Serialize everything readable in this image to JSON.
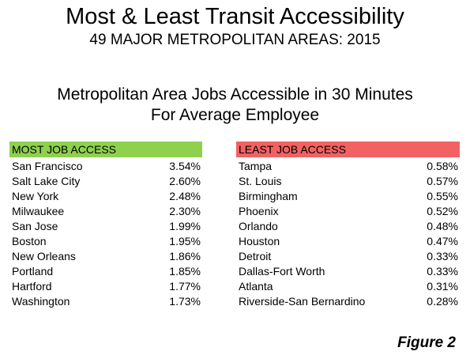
{
  "title": "Most & Least Transit Accessibility",
  "subtitle": "49 MAJOR METROPOLITAN AREAS: 2015",
  "heading_line1": "Metropolitan Area Jobs Accessible in 30 Minutes",
  "heading_line2": "For Average Employee",
  "colors": {
    "most_header_bg": "#8fd14f",
    "least_header_bg": "#f26262"
  },
  "most": {
    "header": "MOST JOB ACCESS",
    "rows": [
      {
        "name": "San Francisco",
        "value": "3.54%"
      },
      {
        "name": "Salt Lake City",
        "value": "2.60%"
      },
      {
        "name": "New York",
        "value": "2.48%"
      },
      {
        "name": "Milwaukee",
        "value": "2.30%"
      },
      {
        "name": "San Jose",
        "value": "1.99%"
      },
      {
        "name": "Boston",
        "value": "1.95%"
      },
      {
        "name": "New Orleans",
        "value": "1.86%"
      },
      {
        "name": "Portland",
        "value": "1.85%"
      },
      {
        "name": "Hartford",
        "value": "1.77%"
      },
      {
        "name": "Washington",
        "value": "1.73%"
      }
    ]
  },
  "least": {
    "header": "LEAST JOB ACCESS",
    "rows": [
      {
        "name": "Tampa",
        "value": "0.58%"
      },
      {
        "name": "St. Louis",
        "value": "0.57%"
      },
      {
        "name": "Birmingham",
        "value": "0.55%"
      },
      {
        "name": "Phoenix",
        "value": "0.52%"
      },
      {
        "name": "Orlando",
        "value": "0.48%"
      },
      {
        "name": "Houston",
        "value": "0.47%"
      },
      {
        "name": "Detroit",
        "value": "0.33%"
      },
      {
        "name": "Dallas-Fort Worth",
        "value": "0.33%"
      },
      {
        "name": "Atlanta",
        "value": "0.31%"
      },
      {
        "name": "Riverside-San Bernardino",
        "value": "0.28%"
      }
    ]
  },
  "figure_label": "Figure 2"
}
